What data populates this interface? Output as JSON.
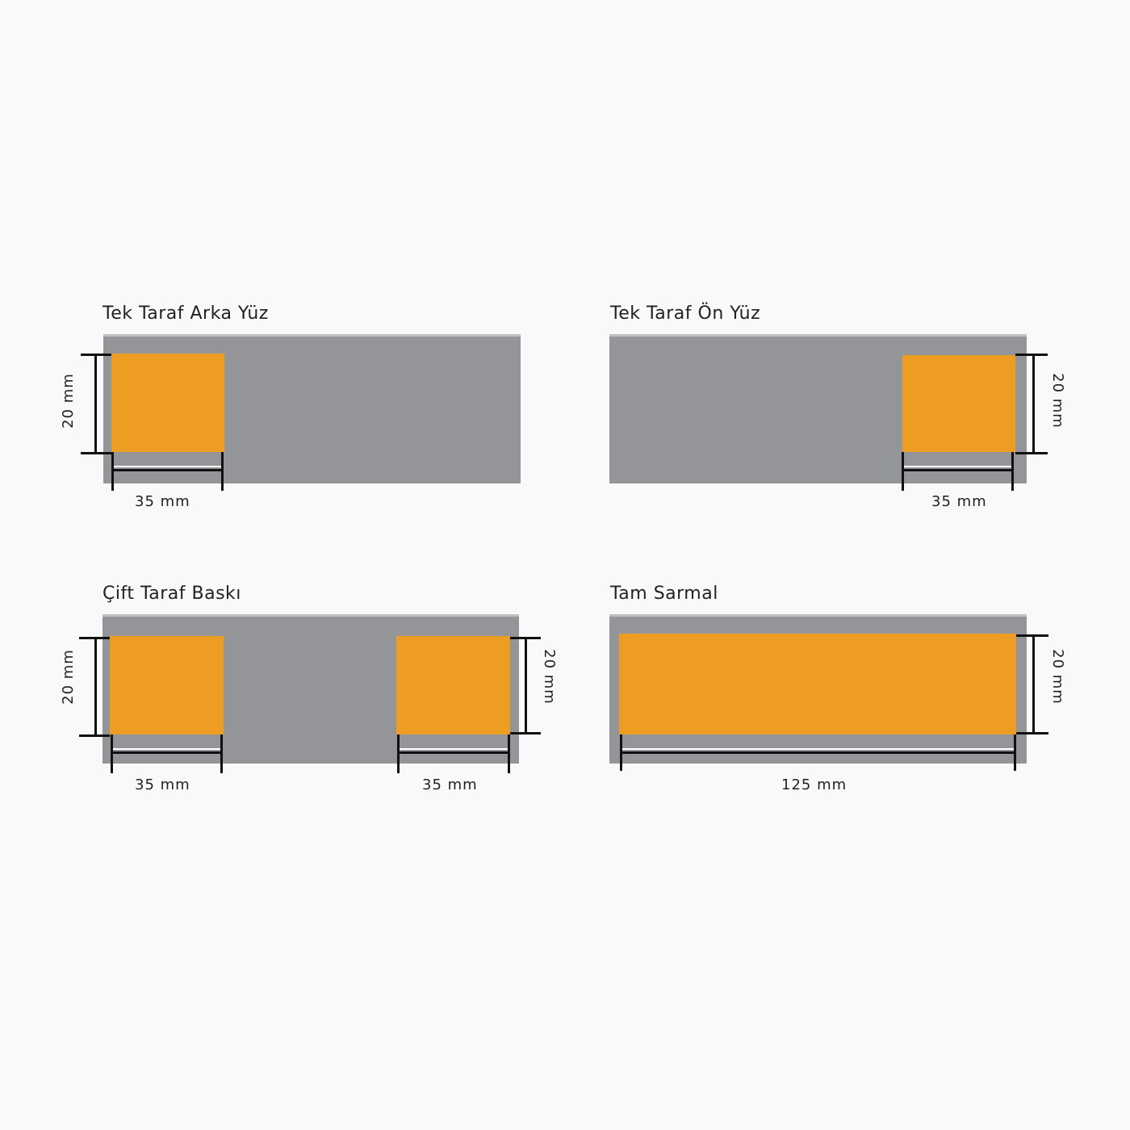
{
  "colors": {
    "background": "#f9f9f9",
    "band": "#949599",
    "print_area": "#ee9d23",
    "dimension_line": "#111111"
  },
  "panels": [
    {
      "title": "Tek Taraf Arka Yüz",
      "width_label": "35 mm",
      "height_label": "20 mm"
    },
    {
      "title": "Tek Taraf Ön Yüz",
      "width_label": "35 mm",
      "height_label": "20 mm"
    },
    {
      "title": "Çift Taraf Baskı",
      "left_width_label": "35 mm",
      "right_width_label": "35 mm",
      "left_height_label": "20 mm",
      "right_height_label": "20 mm"
    },
    {
      "title": "Tam Sarmal",
      "width_label": "125 mm",
      "height_label": "20 mm"
    }
  ]
}
